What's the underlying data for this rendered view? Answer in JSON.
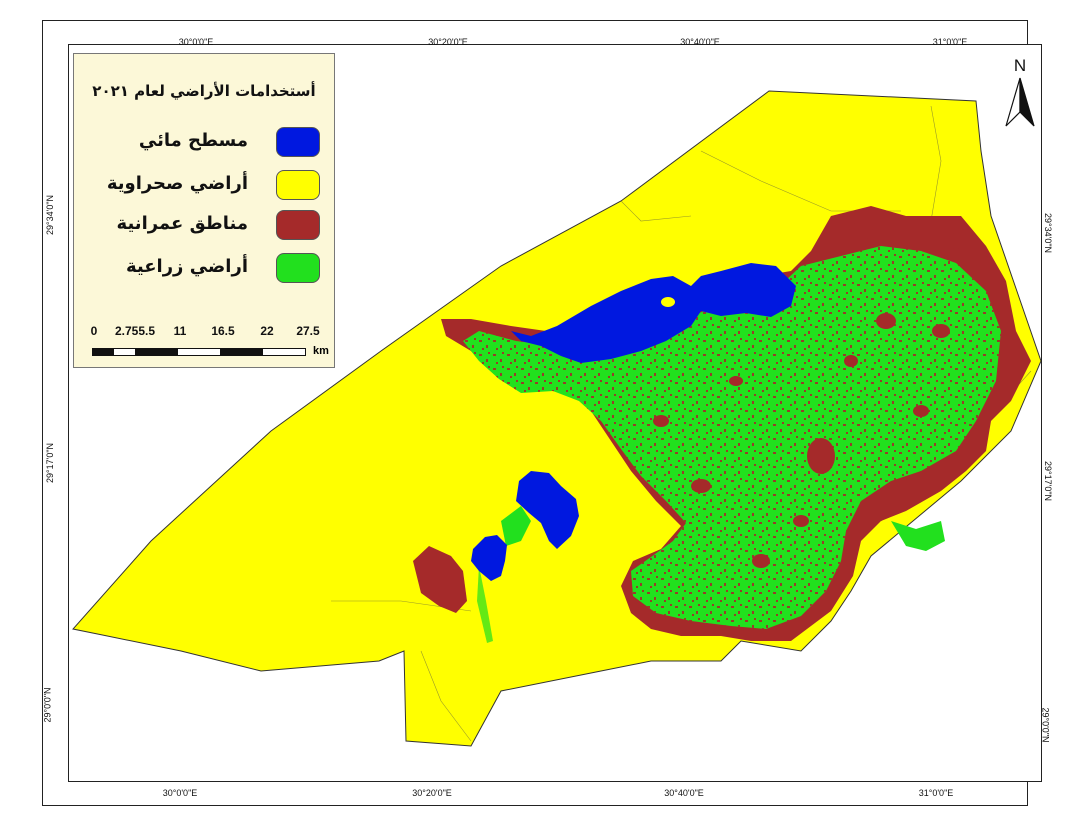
{
  "map": {
    "legend": {
      "title": "أستخدامات الأراضي لعام ٢٠٢١",
      "items": [
        {
          "label": "مسطح مائي",
          "color": "#0018e0"
        },
        {
          "label": "أراضي صحراوية",
          "color": "#ffff00"
        },
        {
          "label": "مناطق عمرانية",
          "color": "#a52a2a"
        },
        {
          "label": "أراضي زراعية",
          "color": "#22e01e"
        }
      ]
    },
    "scale": {
      "labels": [
        "0",
        "2.755.5",
        "11",
        "16.5",
        "22",
        "27.5"
      ],
      "unit": "km"
    },
    "north_label": "N",
    "coords": {
      "top": [
        "30°0'0\"E",
        "30°20'0\"E",
        "30°40'0\"E",
        "31°0'0\"E"
      ],
      "bottom": [
        "30°0'0\"E",
        "30°20'0\"E",
        "30°40'0\"E",
        "31°0'0\"E"
      ],
      "left": [
        "29°34'0\"N",
        "29°17'0\"N",
        "29°0'0\"N"
      ],
      "right": [
        "29°34'0\"N",
        "29°17'0\"N",
        "29°0'0\"N"
      ]
    },
    "colors": {
      "water": "#0018e0",
      "desert": "#ffff00",
      "urban": "#a52a2a",
      "agriculture": "#22e01e",
      "border": "#333333"
    }
  }
}
